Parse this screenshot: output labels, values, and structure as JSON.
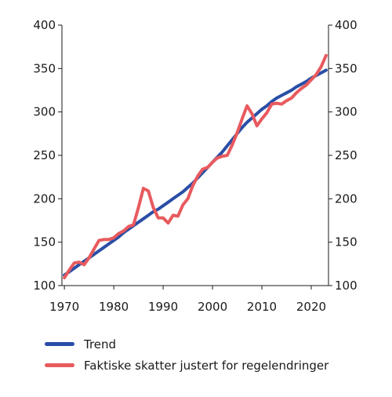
{
  "chart_data": {
    "type": "line",
    "x": [
      1970,
      1971,
      1972,
      1973,
      1974,
      1975,
      1976,
      1977,
      1978,
      1979,
      1980,
      1981,
      1982,
      1983,
      1984,
      1985,
      1986,
      1987,
      1988,
      1989,
      1990,
      1991,
      1992,
      1993,
      1994,
      1995,
      1996,
      1997,
      1998,
      1999,
      2000,
      2001,
      2002,
      2003,
      2004,
      2005,
      2006,
      2007,
      2008,
      2009,
      2010,
      2011,
      2012,
      2013,
      2014,
      2015,
      2016,
      2017,
      2018,
      2019,
      2020,
      2021,
      2022,
      2023
    ],
    "series": [
      {
        "name": "Trend",
        "color": "#2a4ea6",
        "values": [
          112,
          116,
          120,
          124,
          128,
          132,
          136,
          140,
          144,
          148,
          152,
          156,
          161,
          165,
          169,
          173,
          177,
          181,
          185,
          188,
          192,
          196,
          200,
          204,
          208,
          213,
          218,
          224,
          230,
          236,
          242,
          248,
          254,
          261,
          268,
          275,
          282,
          288,
          293,
          298,
          303,
          307,
          312,
          316,
          319,
          322,
          325,
          329,
          332,
          335,
          339,
          342,
          345,
          348
        ]
      },
      {
        "name": "Faktiske skatter justert for regelendringer",
        "color": "#e85a5e",
        "values": [
          109,
          118,
          126,
          127,
          124,
          132,
          142,
          152,
          153,
          153,
          155,
          160,
          163,
          168,
          170,
          190,
          212,
          209,
          190,
          178,
          178,
          172,
          181,
          180,
          193,
          200,
          215,
          226,
          234,
          236,
          242,
          247,
          249,
          250,
          262,
          276,
          292,
          307,
          298,
          284,
          292,
          299,
          309,
          310,
          309,
          313,
          316,
          322,
          327,
          331,
          337,
          343,
          352,
          365
        ]
      }
    ],
    "x_ticks": [
      1970,
      1980,
      1990,
      2000,
      2010,
      2020
    ],
    "x_tick_labels": [
      "1970",
      "1980",
      "1990",
      "2000",
      "2010",
      "2020"
    ],
    "y_ticks": [
      100,
      150,
      200,
      250,
      300,
      350,
      400
    ],
    "y_tick_labels": [
      "100",
      "150",
      "200",
      "250",
      "300",
      "350",
      "400"
    ],
    "xlim": [
      1969.5,
      2023.5
    ],
    "ylim": [
      100,
      400
    ],
    "title": "",
    "xlabel": "",
    "ylabel": "",
    "grid": false,
    "legend_placement": "bottom"
  }
}
